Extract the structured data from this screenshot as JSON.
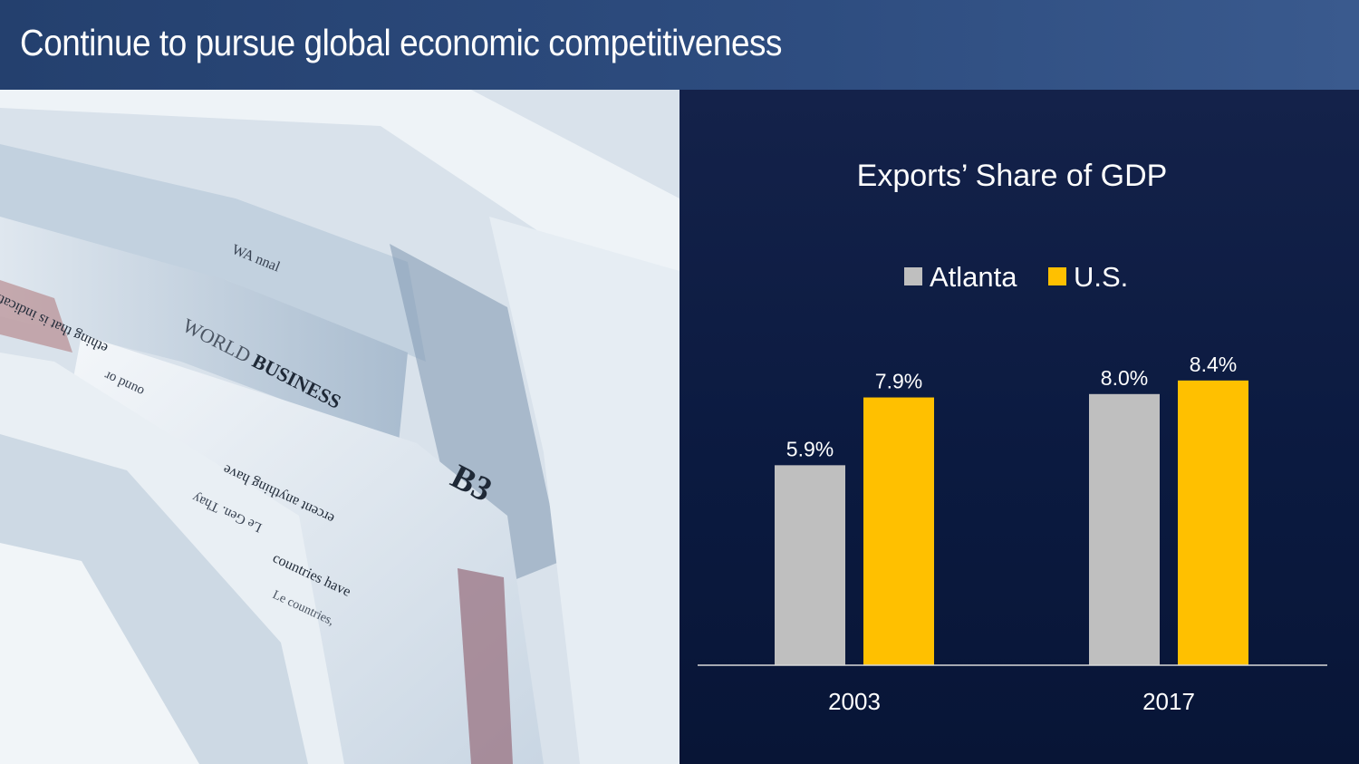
{
  "header": {
    "title": "Continue to pursue global economic competitiveness"
  },
  "photo": {
    "headline": "WORLD BUSINESS",
    "section": "B3",
    "masthead": "WA nnal",
    "snippets": [
      "ething that is indicative of wh",
      "ercent anything have",
      "countries have",
      "Le Gen. Thay",
      "Le countries,",
      "ound or"
    ]
  },
  "colors": {
    "header": "#2e4d80",
    "background": "#0c1a3e",
    "atlanta": "#bfbfbf",
    "us": "#ffc000",
    "text": "#ffffff"
  },
  "chart_data": {
    "type": "bar",
    "title": "Exports’ Share of GDP",
    "categories": [
      "2003",
      "2017"
    ],
    "series": [
      {
        "name": "Atlanta",
        "values": [
          5.9,
          8.0
        ],
        "labels": [
          "5.9%",
          "8.0%"
        ],
        "color": "#bfbfbf"
      },
      {
        "name": "U.S.",
        "values": [
          7.9,
          8.4
        ],
        "labels": [
          "7.9%",
          "8.4%"
        ],
        "color": "#ffc000"
      }
    ],
    "ylim": [
      0,
      10
    ],
    "legend": "top-center",
    "grid": false,
    "xlabel": "",
    "ylabel": ""
  }
}
